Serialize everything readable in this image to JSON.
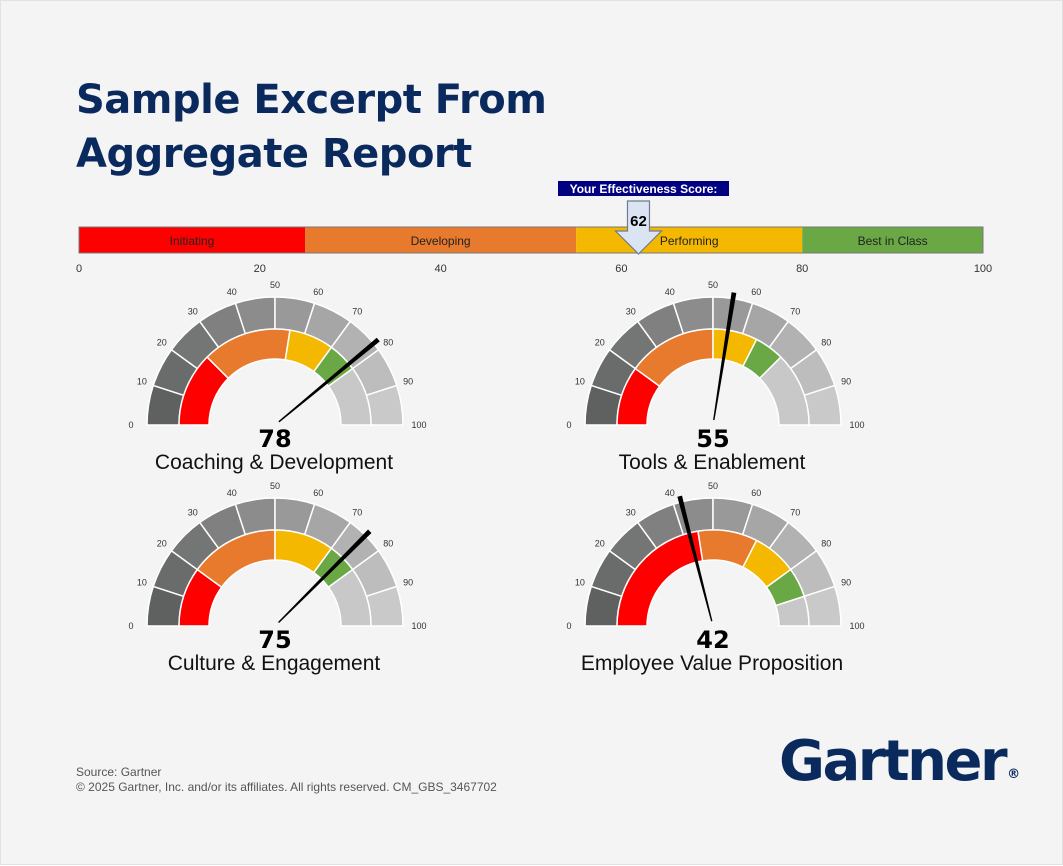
{
  "title_lines": [
    "Sample Excerpt From",
    "Aggregate Report"
  ],
  "footer": {
    "source": "Source: Gartner",
    "copyright": "© 2025 Gartner, Inc. and/or its affiliates. All rights reserved. CM_GBS_3467702"
  },
  "logo": {
    "text": "Gartner",
    "mark": "®"
  },
  "chart_data": [
    {
      "type": "bar",
      "orientation": "horizontal",
      "title": "Your Effectiveness Score:",
      "score": 62,
      "xlim": [
        0,
        100
      ],
      "ticks": [
        0,
        20,
        40,
        60,
        80,
        100
      ],
      "bands": [
        {
          "label": "Initiating",
          "from": 0,
          "to": 25,
          "color": "#ff0000"
        },
        {
          "label": "Developing",
          "from": 25,
          "to": 55,
          "color": "#e87a2e"
        },
        {
          "label": "Performing",
          "from": 55,
          "to": 80,
          "color": "#f4b800"
        },
        {
          "label": "Best in Class",
          "from": 80,
          "to": 100,
          "color": "#6aa845"
        }
      ],
      "marker_color": "#000080"
    },
    {
      "type": "gauge",
      "gauges": [
        {
          "label": "Coaching & Development",
          "value": 78,
          "bands": [
            0,
            25,
            55,
            70,
            80,
            100
          ]
        },
        {
          "label": "Tools & Enablement",
          "value": 55,
          "bands": [
            0,
            20,
            50,
            65,
            75,
            100
          ]
        },
        {
          "label": "Culture & Engagement",
          "value": 75,
          "bands": [
            0,
            20,
            50,
            70,
            80,
            100
          ]
        },
        {
          "label": "Employee Value Proposition",
          "value": 42,
          "bands": [
            0,
            45,
            65,
            80,
            90,
            100
          ]
        }
      ],
      "band_colors": [
        "#ff0000",
        "#e87a2e",
        "#f4b800",
        "#6aa845",
        "#c8c8c8"
      ],
      "scale_ticks": [
        0,
        10,
        20,
        30,
        40,
        50,
        60,
        70,
        80,
        90,
        100
      ],
      "scale_colors": [
        "#5f6060",
        "#6a6b6b",
        "#747575",
        "#808080",
        "#8c8c8c",
        "#999999",
        "#a6a6a6",
        "#b2b2b2",
        "#bdbdbd",
        "#c9c9c9"
      ]
    }
  ]
}
